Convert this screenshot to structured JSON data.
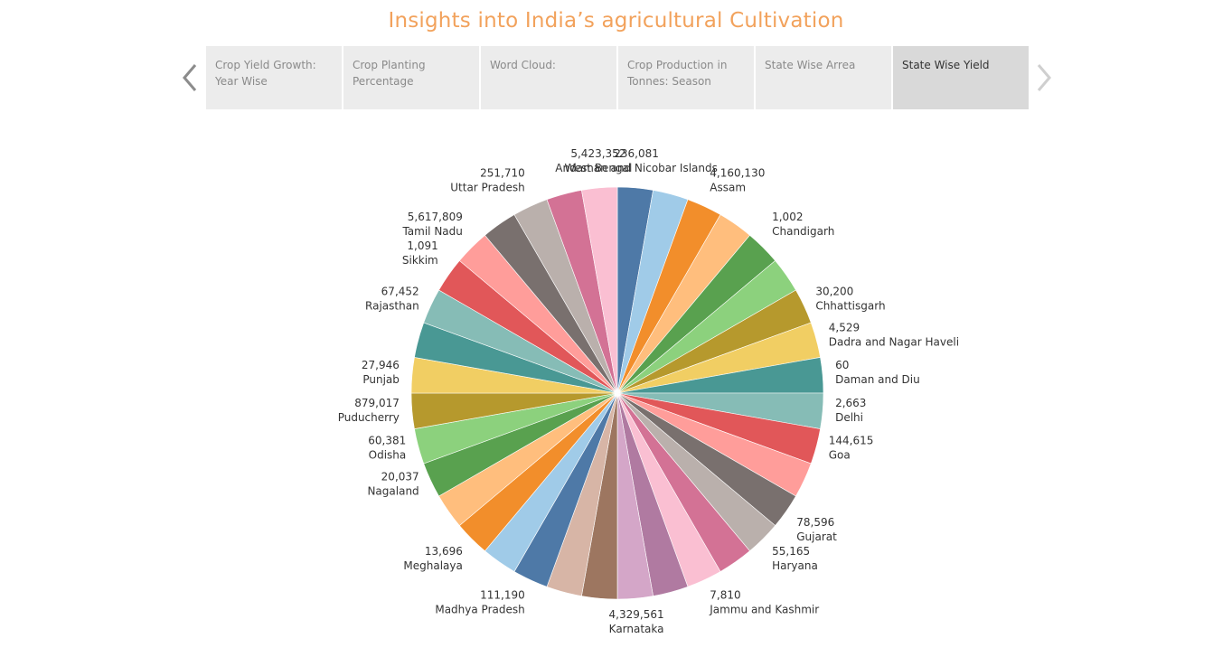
{
  "page": {
    "title": "Insights into India’s  agricultural Cultivation"
  },
  "story": {
    "points": [
      {
        "label": "Crop Yield Growth: Year Wise",
        "active": false
      },
      {
        "label": "Crop Planting Percentage",
        "active": false
      },
      {
        "label": "Word Cloud:",
        "active": false
      },
      {
        "label": "Crop Production in Tonnes: Season",
        "active": false
      },
      {
        "label": "State Wise Arrea",
        "active": false
      },
      {
        "label": "State Wise Yield",
        "active": true
      }
    ],
    "prev_icon": "chevron-left-icon",
    "next_icon": "chevron-right-icon"
  },
  "chart_data": {
    "type": "pie",
    "title": "",
    "slices": [
      {
        "name": "Andaman and Nicobar Islands",
        "value": 236081,
        "value_label": "236,081",
        "color": "#4e79a7"
      },
      {
        "name": "",
        "value": null,
        "value_label": "",
        "color": "#a0cbe8"
      },
      {
        "name": "Assam",
        "value": 4160130,
        "value_label": "4,160,130",
        "color": "#f28e2b"
      },
      {
        "name": "",
        "value": null,
        "value_label": "",
        "color": "#ffbe7d"
      },
      {
        "name": "Chandigarh",
        "value": 1002,
        "value_label": "1,002",
        "color": "#59a14f"
      },
      {
        "name": "",
        "value": null,
        "value_label": "",
        "color": "#8cd17d"
      },
      {
        "name": "Chhattisgarh",
        "value": 30200,
        "value_label": "30,200",
        "color": "#b6992d"
      },
      {
        "name": "Dadra and Nagar Haveli",
        "value": 4529,
        "value_label": "4,529",
        "color": "#f1ce63"
      },
      {
        "name": "Daman and Diu",
        "value": 60,
        "value_label": "60",
        "color": "#499894"
      },
      {
        "name": "Delhi",
        "value": 2663,
        "value_label": "2,663",
        "color": "#86bcb6"
      },
      {
        "name": "Goa",
        "value": 144615,
        "value_label": "144,615",
        "color": "#e15759"
      },
      {
        "name": "",
        "value": null,
        "value_label": "",
        "color": "#ff9d9a"
      },
      {
        "name": "Gujarat",
        "value": 78596,
        "value_label": "78,596",
        "color": "#79706e"
      },
      {
        "name": "Haryana",
        "value": 55165,
        "value_label": "55,165",
        "color": "#bab0ac"
      },
      {
        "name": "",
        "value": null,
        "value_label": "",
        "color": "#d37295"
      },
      {
        "name": "Jammu and Kashmir",
        "value": 7810,
        "value_label": "7,810",
        "color": "#fabfd2"
      },
      {
        "name": "",
        "value": null,
        "value_label": "",
        "color": "#b07aa1"
      },
      {
        "name": "Karnataka",
        "value": 4329561,
        "value_label": "4,329,561",
        "color": "#d4a6c8"
      },
      {
        "name": "",
        "value": null,
        "value_label": "",
        "color": "#9d7660"
      },
      {
        "name": "",
        "value": null,
        "value_label": "",
        "color": "#d7b5a6"
      },
      {
        "name": "Madhya Pradesh",
        "value": 111190,
        "value_label": "111,190",
        "color": "#4e79a7"
      },
      {
        "name": "",
        "value": null,
        "value_label": "",
        "color": "#a0cbe8"
      },
      {
        "name": "Meghalaya",
        "value": 13696,
        "value_label": "13,696",
        "color": "#f28e2b"
      },
      {
        "name": "",
        "value": null,
        "value_label": "",
        "color": "#ffbe7d"
      },
      {
        "name": "Nagaland",
        "value": 20037,
        "value_label": "20,037",
        "color": "#59a14f"
      },
      {
        "name": "Odisha",
        "value": 60381,
        "value_label": "60,381",
        "color": "#8cd17d"
      },
      {
        "name": "Puducherry",
        "value": 879017,
        "value_label": "879,017",
        "color": "#b6992d"
      },
      {
        "name": "Punjab",
        "value": 27946,
        "value_label": "27,946",
        "color": "#f1ce63"
      },
      {
        "name": "",
        "value": null,
        "value_label": "",
        "color": "#499894"
      },
      {
        "name": "Rajasthan",
        "value": 67452,
        "value_label": "67,452",
        "color": "#86bcb6"
      },
      {
        "name": "Sikkim",
        "value": 1091,
        "value_label": "1,091",
        "color": "#e15759"
      },
      {
        "name": "Tamil Nadu",
        "value": 5617809,
        "value_label": "5,617,809",
        "color": "#ff9d9a"
      },
      {
        "name": "",
        "value": null,
        "value_label": "",
        "color": "#79706e"
      },
      {
        "name": "Uttar Pradesh",
        "value": 251710,
        "value_label": "251,710",
        "color": "#bab0ac"
      },
      {
        "name": "",
        "value": null,
        "value_label": "",
        "color": "#d37295"
      },
      {
        "name": "West Bengal",
        "value": 5423352,
        "value_label": "5,423,352",
        "color": "#fabfd2"
      }
    ],
    "equal_angles": true,
    "labels": "outside"
  }
}
